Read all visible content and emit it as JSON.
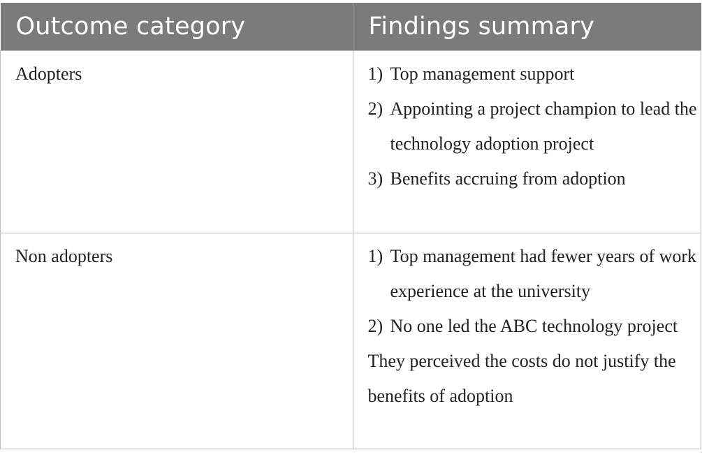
{
  "table": {
    "headers": [
      "Outcome category",
      "Findings summary"
    ],
    "rows": [
      {
        "category": "Adopters",
        "findings": [
          {
            "num": "1)",
            "text": "Top management support"
          },
          {
            "num": "2)",
            "text": "Appointing a project champion to lead the technology adoption project"
          },
          {
            "num": "3)",
            "text": "Benefits accruing from adoption"
          }
        ],
        "note": ""
      },
      {
        "category": "Non adopters",
        "findings": [
          {
            "num": "1)",
            "text": "Top management had fewer years of work experience at the university"
          },
          {
            "num": "2)",
            "text": "No one led the ABC technology project"
          }
        ],
        "note": "They perceived the costs do not justify the benefits of adoption"
      }
    ]
  },
  "colors": {
    "header_bg": "#7a7b7a",
    "header_text": "#ffffff",
    "grid_line": "#bdbdbd"
  }
}
